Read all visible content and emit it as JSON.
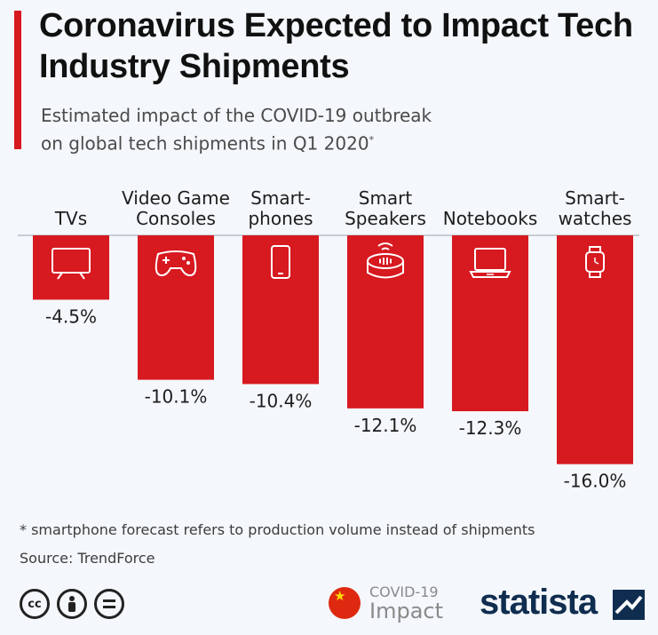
{
  "header": {
    "title": "Coronavirus Expected to Impact Tech Industry Shipments",
    "subtitle_line1": "Estimated impact of the COVID-19 outbreak",
    "subtitle_line2": "on global tech shipments in Q1 2020",
    "subtitle_mark": "*"
  },
  "chart_data": {
    "type": "bar",
    "categories": [
      [
        "TVs"
      ],
      [
        "Video Game",
        "Consoles"
      ],
      [
        "Smart-",
        "phones"
      ],
      [
        "Smart",
        "Speakers"
      ],
      [
        "Notebooks"
      ],
      [
        "Smart-",
        "watches"
      ]
    ],
    "values": [
      -4.5,
      -10.1,
      -10.4,
      -12.1,
      -12.3,
      -16.0
    ],
    "value_labels": [
      "-4.5%",
      "-10.1%",
      "-10.4%",
      "-12.1%",
      "-12.3%",
      "-16.0%"
    ],
    "icons": [
      "tv-icon",
      "gamepad-icon",
      "smartphone-icon",
      "smart-speaker-icon",
      "laptop-icon",
      "smartwatch-icon"
    ],
    "ylim": [
      -16,
      0
    ],
    "bar_color": "#d71920",
    "title": "",
    "xlabel": "",
    "ylabel": ""
  },
  "footer": {
    "footnote": "* smartphone forecast refers to production volume instead of shipments",
    "source": "Source: TrendForce",
    "license_icons": [
      "cc-icon",
      "attribution-icon",
      "no-derivatives-icon"
    ],
    "badge_line1": "COVID-19",
    "badge_line2": "Impact",
    "brand": "statista"
  },
  "colors": {
    "accent": "#d71920",
    "background": "#f4f7fb",
    "brand": "#0f2d4f"
  }
}
